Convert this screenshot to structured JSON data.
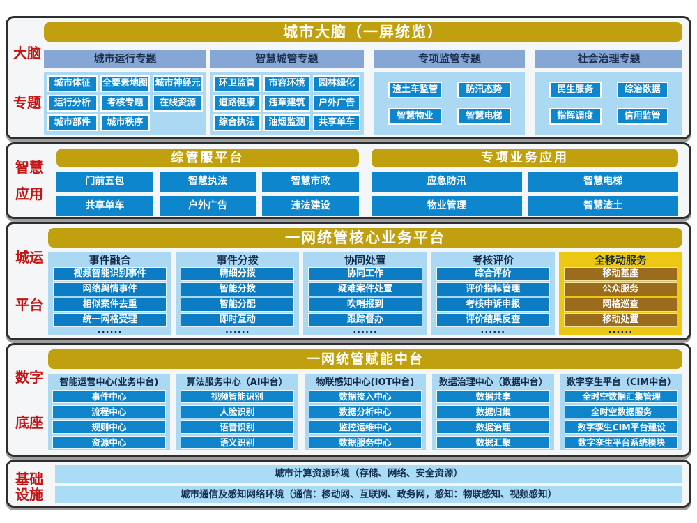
{
  "brain": {
    "label": [
      "大脑",
      "专题"
    ],
    "header": "城市大脑（一屏统览）",
    "groups": [
      {
        "title": "城市运行专题",
        "items": [
          "城市体征",
          "全要素地图",
          "城市神经元",
          "运行分析",
          "考核专题",
          "在线资源",
          "城市部件",
          "城市秩序"
        ]
      },
      {
        "title": "智慧城管专题",
        "items": [
          "环卫监管",
          "市容环境",
          "园林绿化",
          "道路健康",
          "违章建筑",
          "户外广告",
          "综合执法",
          "油烟监测",
          "共享单车"
        ]
      },
      {
        "title": "专项监管专题",
        "items": [
          "渣土车监管",
          "防汛态势",
          "智慧物业",
          "智慧电梯"
        ]
      },
      {
        "title": "社会治理专题",
        "items": [
          "民生服务",
          "综治数据",
          "指挥调度",
          "信用监管"
        ]
      }
    ]
  },
  "apps": {
    "label": [
      "智慧",
      "应用"
    ],
    "platforms": [
      {
        "header": "综管服平台",
        "items": [
          "门前五包",
          "智慧执法",
          "智慧市政",
          "共享单车",
          "户外广告",
          "违法建设"
        ]
      },
      {
        "header": "专项业务应用",
        "items": [
          "应急防汛",
          "智慧电梯",
          "物业管理",
          "智慧渣土"
        ]
      }
    ]
  },
  "core": {
    "label": [
      "城运",
      "平台"
    ],
    "header": "一网统管核心业务平台",
    "columns": [
      {
        "title": "事件融合",
        "items": [
          "视频智能识别事件",
          "网络舆情事件",
          "相似案件去重",
          "统一网格受理"
        ],
        "more": "......"
      },
      {
        "title": "事件分拨",
        "items": [
          "精细分拨",
          "智能分拨",
          "智能分配",
          "即时互动"
        ],
        "more": "......"
      },
      {
        "title": "协同处置",
        "items": [
          "协同工作",
          "疑难案件处置",
          "吹哨报到",
          "跟踪督办"
        ],
        "more": "......"
      },
      {
        "title": "考核评价",
        "items": [
          "综合评价",
          "评价指标管理",
          "考核申诉申报",
          "评价结果反查"
        ],
        "more": "......"
      },
      {
        "title": "全移动服务",
        "items": [
          "移动基座",
          "公众服务",
          "网格巡查",
          "移动处置"
        ],
        "more": "......"
      }
    ]
  },
  "mid": {
    "label": [
      "数字",
      "底座"
    ],
    "header": "一网统管赋能中台",
    "columns": [
      {
        "title": "智能运营中心(业务中台)",
        "items": [
          "事件中心",
          "流程中心",
          "规则中心",
          "资源中心"
        ]
      },
      {
        "title": "算法服务中心（AI中台）",
        "items": [
          "视频智能识别",
          "人脸识别",
          "语音识别",
          "语义识别"
        ]
      },
      {
        "title": "物联感知中心(IOT中台)",
        "items": [
          "数据接入中心",
          "数据分析中心",
          "监控运维中心",
          "数据服务中心"
        ]
      },
      {
        "title": "数据治理中心（数据中台）",
        "items": [
          "数据共享",
          "数据归集",
          "数据治理",
          "数据汇聚"
        ]
      },
      {
        "title": "数字孪生平台（CIM中台）",
        "items": [
          "全时空数据汇集管理",
          "全时空数据服务",
          "数字孪生CIM平台建设",
          "数字孪生平台系统模块"
        ]
      }
    ]
  },
  "infra": {
    "label": [
      "基础",
      "设施"
    ],
    "rows": [
      "城市计算资源环境（存储、网络、安全资源）",
      "城市通信及感知网络环境（通信：移动网、互联网、政务网，感知：物联感知、视频感知）"
    ]
  },
  "colors": {
    "gold_header": "#c0a00e",
    "gold_panel": "#ecc713",
    "brown_button": "#9b6c1d",
    "steel_blue": "#86a7d6",
    "light_blue_panel": "#abd9f4",
    "blue_button": "#0e86cd",
    "label_red": "#c41414",
    "navy_text": "#122a47"
  }
}
